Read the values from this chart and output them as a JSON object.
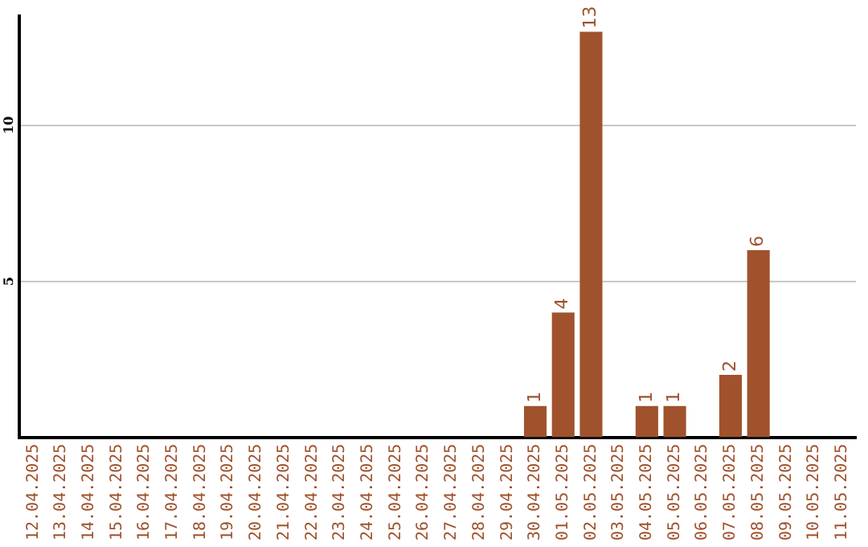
{
  "chart_data": {
    "type": "bar",
    "categories": [
      "12.04.2025",
      "13.04.2025",
      "14.04.2025",
      "15.04.2025",
      "16.04.2025",
      "17.04.2025",
      "18.04.2025",
      "19.04.2025",
      "20.04.2025",
      "21.04.2025",
      "22.04.2025",
      "23.04.2025",
      "24.04.2025",
      "25.04.2025",
      "26.04.2025",
      "27.04.2025",
      "28.04.2025",
      "29.04.2025",
      "30.04.2025",
      "01.05.2025",
      "02.05.2025",
      "03.05.2025",
      "04.05.2025",
      "05.05.2025",
      "06.05.2025",
      "07.05.2025",
      "08.05.2025",
      "09.05.2025",
      "10.05.2025",
      "11.05.2025"
    ],
    "values": [
      0,
      0,
      0,
      0,
      0,
      0,
      0,
      0,
      0,
      0,
      0,
      0,
      0,
      0,
      0,
      0,
      0,
      0,
      1,
      4,
      13,
      0,
      1,
      1,
      0,
      2,
      6,
      0,
      0,
      0
    ],
    "value_labels": [
      null,
      null,
      null,
      null,
      null,
      null,
      null,
      null,
      null,
      null,
      null,
      null,
      null,
      null,
      null,
      null,
      null,
      null,
      "1",
      "4",
      "13",
      null,
      "1",
      "1",
      null,
      "2",
      "6",
      null,
      null,
      null
    ],
    "color": "#a0522d",
    "ylim": [
      0,
      13.5
    ],
    "yticks": [
      5,
      10
    ],
    "grid": "y",
    "legend": false
  }
}
